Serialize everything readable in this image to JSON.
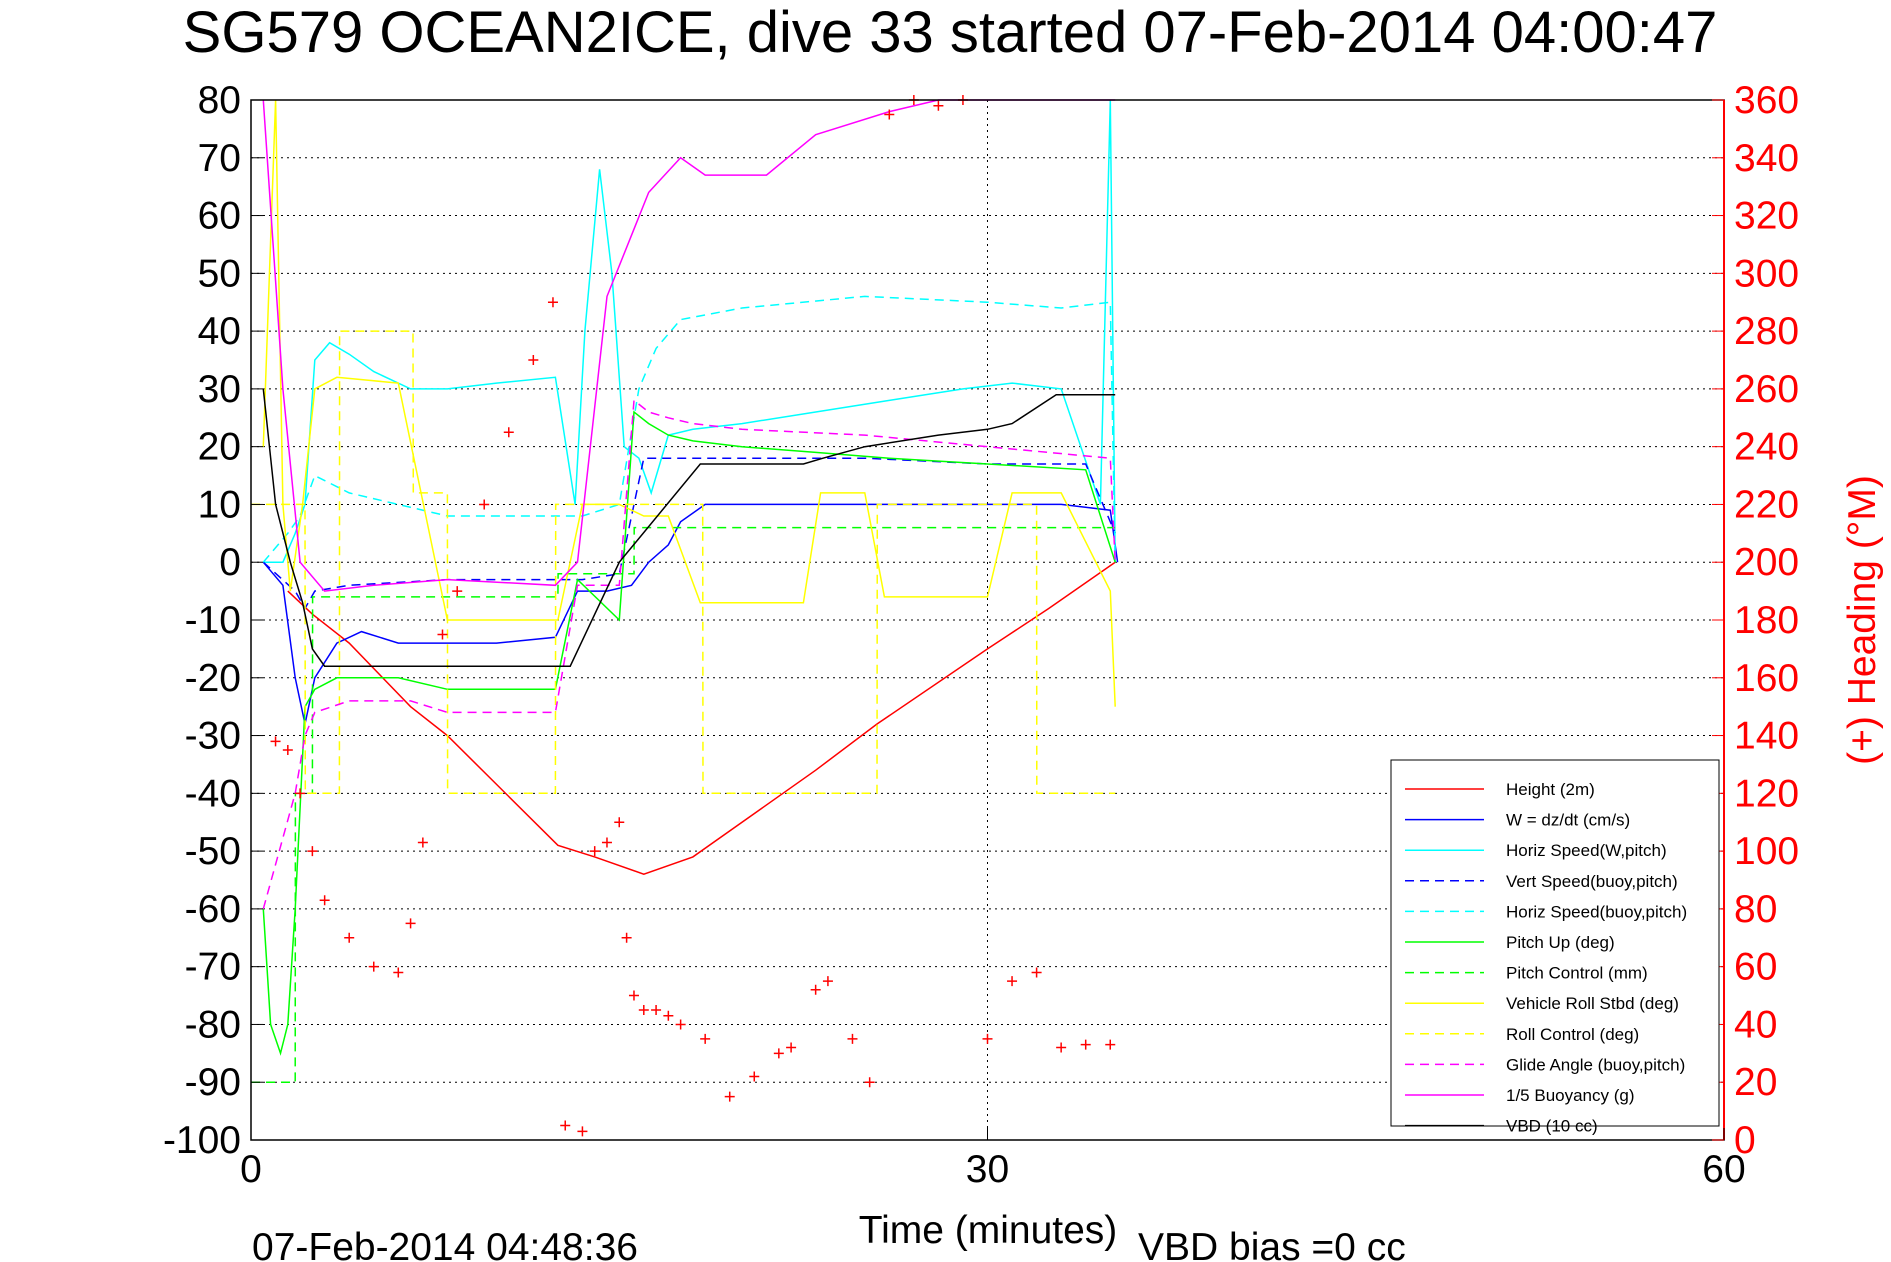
{
  "chart_data": {
    "type": "line",
    "title": "SG579 OCEAN2ICE, dive 33 started 07-Feb-2014 04:00:47",
    "xlabel": "Time (minutes)",
    "ylabel": "",
    "y2label": "(+) Heading (°M)",
    "xlim": [
      0,
      60
    ],
    "ylim": [
      -100,
      80
    ],
    "y2lim": [
      0,
      360
    ],
    "xticks": [
      "0",
      "30",
      "60"
    ],
    "yticks": [
      "80",
      "70",
      "60",
      "50",
      "40",
      "30",
      "20",
      "10",
      "0",
      "-10",
      "-20",
      "-30",
      "-40",
      "-50",
      "-60",
      "-70",
      "-80",
      "-90",
      "-100"
    ],
    "y2ticks": [
      "360",
      "340",
      "320",
      "300",
      "280",
      "260",
      "240",
      "220",
      "200",
      "180",
      "160",
      "140",
      "120",
      "100",
      "80",
      "60",
      "40",
      "20",
      "0"
    ],
    "grid": true,
    "legend_position": "bottom-right",
    "footer_left": "07-Feb-2014 04:48:36",
    "footer_right": "VBD bias =0 cc",
    "colors": {
      "height": "#ff0000",
      "w": "#0000ff",
      "horiz_speed": "#00ffff",
      "pitch": "#00ff00",
      "roll": "#ffff00",
      "glide": "#ff00ff",
      "buoyancy": "#ff00ff",
      "vbd": "#000000",
      "heading": "#ff0000"
    },
    "series": [
      {
        "name": "Height (2m)",
        "color": "#ff0000",
        "dash": false,
        "x": [
          1.5,
          2.5,
          4,
          6.5,
          8,
          12.5,
          14,
          16,
          18,
          23,
          25.5,
          30,
          32.5,
          35.2
        ],
        "y": [
          -5,
          -9,
          -14,
          -25,
          -30,
          -49,
          -51,
          -54,
          -51,
          -36,
          -28,
          -15,
          -8,
          0
        ]
      },
      {
        "name": "W = dz/dt (cm/s)",
        "color": "#0000ff",
        "dash": false,
        "x": [
          0.5,
          1.3,
          1.8,
          2.2,
          2.6,
          3.5,
          4.5,
          6,
          8,
          10,
          12.4,
          13.3,
          14.5,
          15.5,
          16.2,
          17,
          17.5,
          18.5,
          20,
          23,
          26,
          30,
          33,
          35,
          35.3
        ],
        "y": [
          0,
          -4,
          -20,
          -28,
          -20,
          -14,
          -12,
          -14,
          -14,
          -14,
          -13,
          -5,
          -5,
          -4,
          0,
          3,
          7,
          10,
          10,
          10,
          10,
          10,
          10,
          9,
          0
        ]
      },
      {
        "name": "Horiz Speed(W,pitch)",
        "color": "#00ffff",
        "dash": false,
        "x": [
          0.5,
          1.3,
          1.8,
          2.2,
          2.6,
          3.2,
          4,
          5,
          6.5,
          8,
          10,
          12.4,
          13.2,
          13.6,
          14.2,
          14.7,
          15.2,
          15.8,
          16.3,
          17,
          18,
          20,
          23,
          26,
          29,
          31,
          33,
          34.6,
          35,
          35.2
        ],
        "y": [
          0,
          0,
          5,
          10,
          35,
          38,
          36,
          33,
          30,
          30,
          31,
          32,
          10,
          40,
          68,
          50,
          20,
          18,
          12,
          22,
          23,
          24,
          26,
          28,
          30,
          31,
          30,
          10,
          80,
          0
        ]
      },
      {
        "name": "Vert Speed(buoy,pitch)",
        "color": "#0000ff",
        "dash": true,
        "x": [
          0.5,
          1.8,
          2.2,
          2.6,
          4,
          8,
          12.4,
          13.5,
          15,
          16,
          17,
          20,
          25,
          30,
          34,
          35.2
        ],
        "y": [
          0,
          -5,
          -8,
          -5,
          -4,
          -3,
          -3,
          -3,
          -2,
          18,
          18,
          18,
          18,
          17,
          17,
          5
        ]
      },
      {
        "name": "Horiz Speed(buoy,pitch)",
        "color": "#00ffff",
        "dash": true,
        "x": [
          0.5,
          1.5,
          2,
          2.6,
          4,
          8,
          12.4,
          13.5,
          15,
          15.8,
          16.5,
          17.5,
          20,
          25,
          30,
          33,
          35,
          35.2
        ],
        "y": [
          0,
          5,
          8,
          15,
          12,
          8,
          8,
          8,
          10,
          30,
          37,
          42,
          44,
          46,
          45,
          44,
          45,
          0
        ]
      },
      {
        "name": "Pitch Up (deg)",
        "color": "#00ff00",
        "dash": false,
        "x": [
          0.5,
          0.8,
          1.2,
          1.5,
          1.8,
          2.2,
          2.6,
          3.5,
          4.5,
          6,
          8,
          10,
          12.4,
          13.3,
          15,
          15.6,
          16.2,
          17,
          18,
          20,
          23,
          26,
          30,
          34,
          35.2
        ],
        "y": [
          -60,
          -80,
          -85,
          -80,
          -60,
          -25,
          -22,
          -20,
          -20,
          -20,
          -22,
          -22,
          -22,
          -3,
          -10,
          26,
          24,
          22,
          21,
          20,
          19,
          18,
          17,
          16,
          0
        ]
      },
      {
        "name": "Pitch Control (mm)",
        "color": "#00ff00",
        "dash": true,
        "x": [
          0,
          1.8,
          1.81,
          2.5,
          2.51,
          12.5,
          12.51,
          15.6,
          15.61,
          35.2
        ],
        "y": [
          -90,
          -90,
          -40,
          -40,
          -6,
          -6,
          -2,
          -2,
          6,
          6
        ]
      },
      {
        "name": "Vehicle Roll Stbd (deg)",
        "color": "#ffff00",
        "dash": false,
        "x": [
          0.5,
          1,
          1.3,
          1.6,
          2.1,
          2.6,
          3.5,
          6,
          8,
          12.5,
          13.5,
          15,
          16,
          17,
          18.3,
          22.5,
          23.2,
          25,
          25.8,
          30,
          31,
          33,
          35,
          35.2
        ],
        "y": [
          20,
          80,
          10,
          -5,
          10,
          30,
          32,
          31,
          -10,
          -10,
          10,
          10,
          8,
          8,
          -7,
          -7,
          12,
          12,
          -6,
          -6,
          12,
          12,
          -5,
          -25
        ]
      },
      {
        "name": "Roll Control (deg)",
        "color": "#ffff00",
        "dash": true,
        "x": [
          0,
          2.2,
          2.21,
          3.6,
          3.61,
          6.6,
          6.61,
          8,
          8.01,
          12.4,
          12.41,
          18.4,
          18.41,
          25.5,
          25.51,
          32,
          32.01,
          35.2
        ],
        "y": [
          10,
          10,
          -40,
          -40,
          40,
          40,
          12,
          12,
          -40,
          -40,
          10,
          10,
          -40,
          -40,
          10,
          10,
          -40,
          -40
        ]
      },
      {
        "name": "Glide Angle (buoy,pitch)",
        "color": "#ff00ff",
        "dash": true,
        "x": [
          0.5,
          1.8,
          2.2,
          2.6,
          4,
          6.5,
          8,
          10,
          12.4,
          13.3,
          15,
          15.6,
          16.2,
          17,
          18,
          20,
          25,
          30,
          35,
          35.2
        ],
        "y": [
          -60,
          -40,
          -30,
          -26,
          -24,
          -24,
          -26,
          -26,
          -26,
          -4,
          -4,
          28,
          26,
          25,
          24,
          23,
          22,
          20,
          18,
          0
        ]
      },
      {
        "name": "1/5 Buoyancy (g)",
        "color": "#ff00ff",
        "dash": false,
        "x": [
          0.5,
          1.3,
          2,
          3,
          5,
          8,
          12.4,
          13.3,
          14.5,
          16.2,
          17.5,
          18.5,
          21,
          23,
          26,
          28,
          30,
          35.2
        ],
        "y": [
          80,
          30,
          0,
          -5,
          -4,
          -3,
          -4,
          0,
          46,
          64,
          70,
          67,
          67,
          74,
          78,
          80,
          82,
          82
        ]
      },
      {
        "name": "VBD (10 cc)",
        "color": "#000000",
        "dash": false,
        "x": [
          0.5,
          1,
          1.6,
          2.1,
          2.5,
          3,
          8,
          12.4,
          13,
          15,
          18.3,
          22.5,
          23.3,
          25,
          28,
          30,
          31,
          32.8,
          35.2
        ],
        "y": [
          30,
          10,
          0,
          -7,
          -15,
          -18,
          -18,
          -18,
          -18,
          0,
          17,
          17,
          18,
          20,
          22,
          23,
          24,
          29,
          29
        ]
      },
      {
        "name": "Heading",
        "color": "#ff0000",
        "dash": false,
        "marker": "+",
        "x": [
          1,
          1.5,
          2,
          2.5,
          3,
          4,
          5,
          6,
          6.5,
          7,
          7.8,
          8.4,
          9.5,
          10.5,
          11.5,
          12.3,
          12.8,
          13.5,
          14,
          14.5,
          15,
          15.3,
          15.6,
          16,
          16.5,
          17,
          17.5,
          18.5,
          19.5,
          20.5,
          21.5,
          22,
          23,
          23.5,
          24.5,
          25.2,
          26,
          27,
          28,
          29,
          30,
          31,
          32,
          33,
          34,
          35
        ],
        "y": [
          138,
          135,
          120,
          100,
          83,
          70,
          60,
          58,
          75,
          103,
          175,
          190,
          220,
          245,
          270,
          290,
          5,
          3,
          100,
          103,
          110,
          70,
          50,
          45,
          45,
          43,
          40,
          35,
          15,
          22,
          30,
          32,
          52,
          55,
          35,
          20,
          355,
          362,
          358,
          360,
          35,
          55,
          58,
          32,
          33,
          33
        ]
      }
    ]
  }
}
